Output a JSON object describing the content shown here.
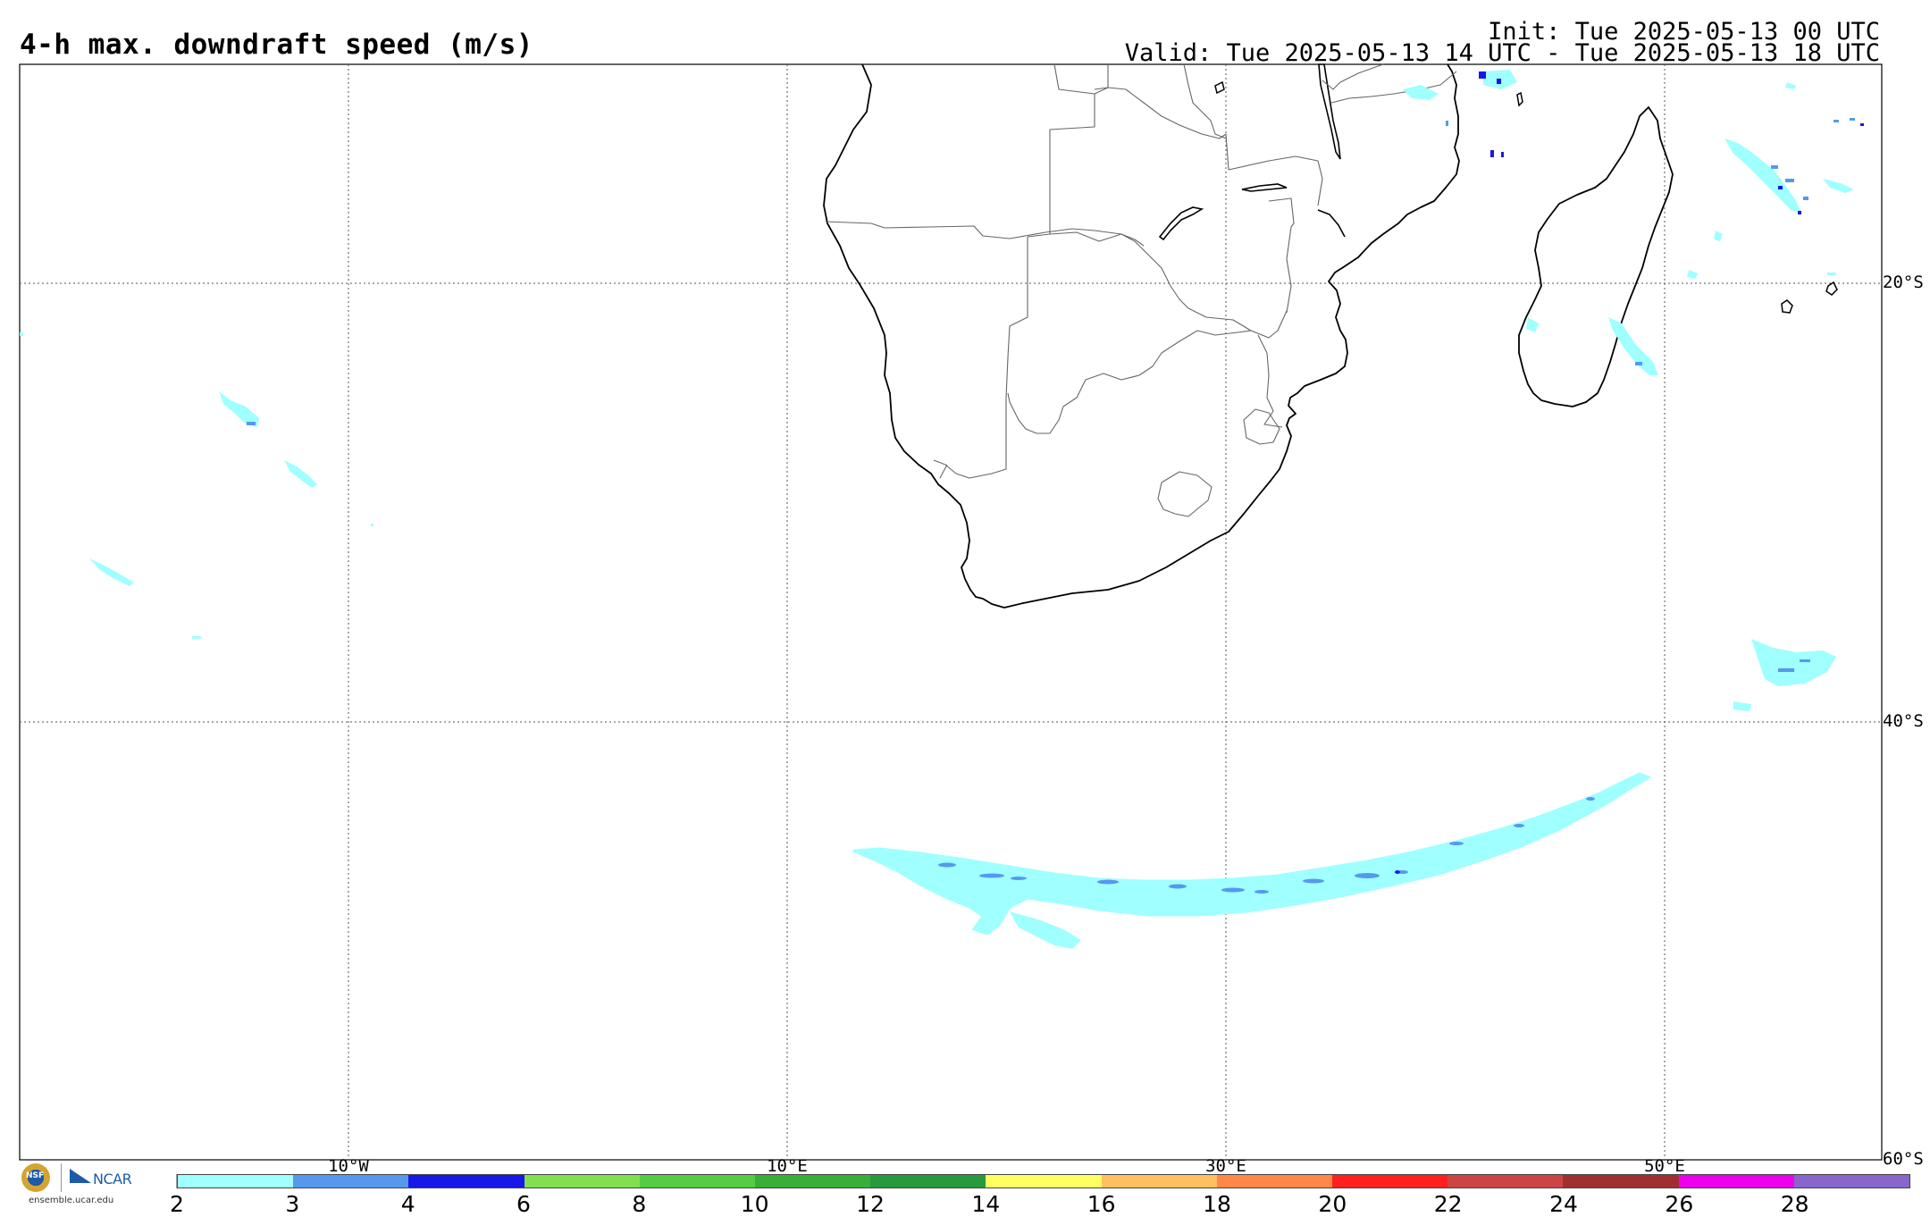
{
  "header": {
    "title": "4-h max. downdraft speed (m/s)",
    "init": "Init: Tue 2025-05-13 00 UTC",
    "valid": "Valid: Tue 2025-05-13 14 UTC - Tue 2025-05-13 18 UTC"
  },
  "map": {
    "lat_labels": [
      "20°S",
      "40°S",
      "60°S"
    ],
    "lon_labels": [
      "10°W",
      "10°E",
      "30°E",
      "50°E"
    ]
  },
  "colorbar": {
    "colors": [
      "#a0ffff",
      "#5599ee",
      "#1818e8",
      "#80e050",
      "#55cc44",
      "#38b038",
      "#289a3e",
      "#ffff60",
      "#ffc060",
      "#ff8848",
      "#ff2020",
      "#cc4444",
      "#a03030",
      "#ee00ee",
      "#8866cc"
    ],
    "ticks": [
      "2",
      "3",
      "4",
      "6",
      "8",
      "10",
      "12",
      "14",
      "16",
      "18",
      "20",
      "22",
      "24",
      "26",
      "28"
    ]
  },
  "footer": {
    "nsf_logo_text": "NSF",
    "ncar_logo_text": "NCAR",
    "site_url": "ensemble.ucar.edu"
  }
}
